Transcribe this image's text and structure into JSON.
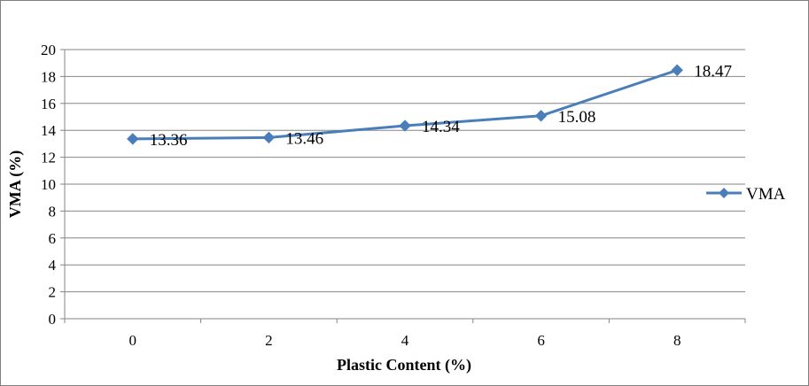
{
  "chart_data": {
    "type": "line",
    "title": "",
    "xlabel": "Plastic Content (%)",
    "ylabel": "VMA  (%)",
    "x": [
      0,
      2,
      4,
      6,
      8
    ],
    "x_tick_labels": [
      "0",
      "2",
      "4",
      "6",
      "8"
    ],
    "ylim": [
      0,
      20
    ],
    "y_ticks": [
      0,
      2,
      4,
      6,
      8,
      10,
      12,
      14,
      16,
      18,
      20
    ],
    "y_tick_labels": [
      "0",
      "2",
      "4",
      "6",
      "8",
      "10",
      "12",
      "14",
      "16",
      "18",
      "20"
    ],
    "grid": true,
    "legend_position": "right",
    "series": [
      {
        "name": "VMA",
        "values": [
          13.36,
          13.46,
          14.34,
          15.08,
          18.47
        ],
        "data_labels": [
          "13.36",
          "13.46",
          "14.34",
          "15.08",
          "18.47"
        ],
        "color": "#4a7ebb",
        "marker": "diamond"
      }
    ],
    "gridline_color": "#868686"
  }
}
